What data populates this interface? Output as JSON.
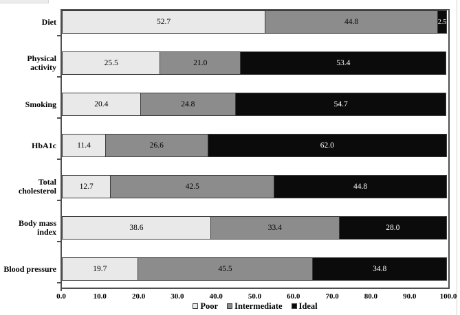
{
  "chart_data": {
    "type": "bar",
    "orientation": "horizontal",
    "stacked": true,
    "title": "",
    "xlabel": "",
    "ylabel": "",
    "xlim": [
      0,
      100
    ],
    "x_ticks": [
      "0.0",
      "10.0",
      "20.0",
      "30.0",
      "40.0",
      "50.0",
      "60.0",
      "70.0",
      "80.0",
      "90.0",
      "100.0"
    ],
    "grid": false,
    "legend_position": "bottom-center",
    "value_decimals": 1,
    "categories": [
      "Diet",
      "Physical activity",
      "Smoking",
      "HbA1c",
      "Total cholesterol",
      "Body mass index",
      "Blood pressure"
    ],
    "series": [
      {
        "name": "Poor",
        "color": "#e9e9e9",
        "label_color": "#000000",
        "values": [
          52.7,
          25.5,
          20.4,
          11.4,
          12.7,
          38.6,
          19.7
        ]
      },
      {
        "name": "Intermediate",
        "color": "#8c8c8c",
        "label_color": "#000000",
        "values": [
          44.8,
          21.0,
          24.8,
          26.6,
          42.5,
          33.4,
          45.5
        ]
      },
      {
        "name": "Ideal",
        "color": "#0b0b0b",
        "label_color": "#ffffff",
        "values": [
          2.5,
          53.4,
          54.7,
          62.0,
          44.8,
          28.0,
          34.8
        ]
      }
    ]
  },
  "colors": {
    "background": "#ffffff",
    "plot_border": "#4f4f4f",
    "segment_border": "#3a3a3a",
    "text": "#000000"
  }
}
